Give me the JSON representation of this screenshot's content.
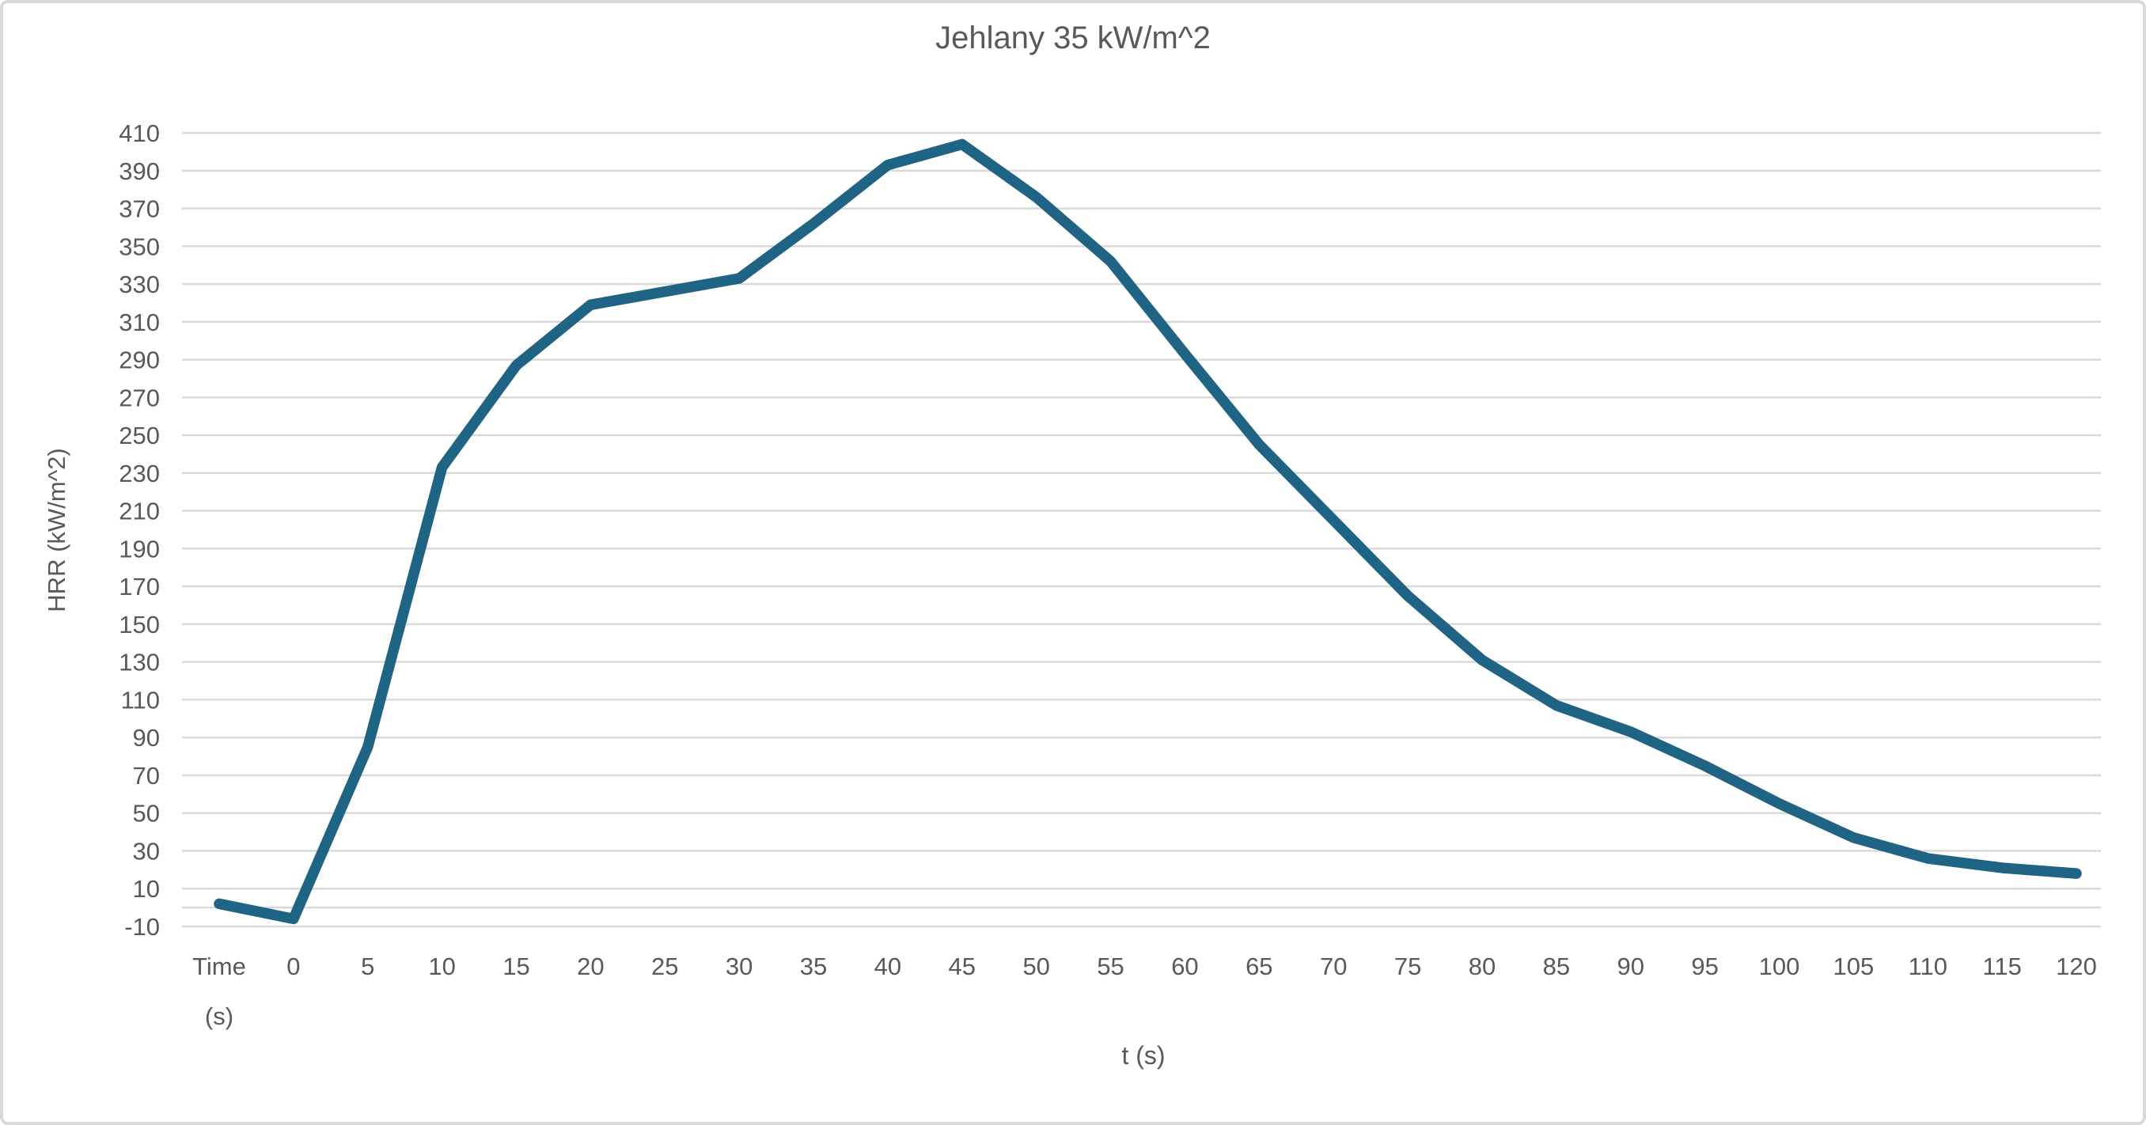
{
  "chart_data": {
    "type": "line",
    "title": "Jehlany 35 kW/m^2",
    "xlabel": "t (s)",
    "ylabel": "HRR (kW/m^2)",
    "categories": [
      "Time (s)",
      "0",
      "5",
      "10",
      "15",
      "20",
      "25",
      "30",
      "35",
      "40",
      "45",
      "50",
      "55",
      "60",
      "65",
      "70",
      "75",
      "80",
      "85",
      "90",
      "95",
      "100",
      "105",
      "110",
      "115",
      "120"
    ],
    "series": [
      {
        "name": "HRR",
        "values": [
          2,
          -6,
          85,
          233,
          287,
          319,
          326,
          333,
          362,
          393,
          404,
          376,
          342,
          293,
          245,
          205,
          165,
          131,
          107,
          93,
          75,
          55,
          37,
          26,
          21,
          18
        ]
      }
    ],
    "y_axis": {
      "min": -10,
      "max": 410,
      "step": 20
    },
    "x_axis_cross_value": 0,
    "grid": true,
    "legend": false,
    "colors": {
      "line": "#1f6485",
      "gridline": "#d9d9d9",
      "text": "#595959",
      "frame_border": "#d9d9d9",
      "background": "#ffffff"
    }
  }
}
